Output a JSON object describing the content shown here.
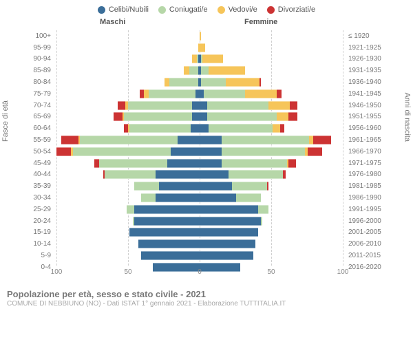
{
  "chart": {
    "type": "population_pyramid",
    "background_color": "#ffffff",
    "grid_color": "#cfcfcf",
    "text_color": "#777777",
    "font_family": "Arial",
    "label_fontsize": 10,
    "header_fontsize": 11,
    "header_male": "Maschi",
    "header_female": "Femmine",
    "y_title_left": "Fasce di età",
    "y_title_right": "Anni di nascita",
    "legend": {
      "items": [
        {
          "label": "Celibi/Nubili",
          "color": "#3b6e99"
        },
        {
          "label": "Coniugati/e",
          "color": "#b6d7a8"
        },
        {
          "label": "Vedovi/e",
          "color": "#f6c55a"
        },
        {
          "label": "Divorziati/e",
          "color": "#cc3333"
        }
      ],
      "fontsize": 11
    },
    "xaxis": {
      "max": 100,
      "ticks": [
        100,
        50,
        0,
        50,
        100
      ],
      "tick_fontsize": 10
    },
    "rows": [
      {
        "age": "100+",
        "year": "≤ 1920",
        "m": [
          0,
          0,
          0,
          0
        ],
        "f": [
          0,
          0,
          1,
          0
        ]
      },
      {
        "age": "95-99",
        "year": "1921-1925",
        "m": [
          0,
          0,
          1,
          0
        ],
        "f": [
          0,
          0,
          4,
          0
        ]
      },
      {
        "age": "90-94",
        "year": "1926-1930",
        "m": [
          1,
          1,
          3,
          0
        ],
        "f": [
          1,
          1,
          14,
          0
        ]
      },
      {
        "age": "85-89",
        "year": "1931-1935",
        "m": [
          1,
          6,
          4,
          0
        ],
        "f": [
          1,
          5,
          25,
          0
        ]
      },
      {
        "age": "80-84",
        "year": "1936-1940",
        "m": [
          1,
          20,
          3,
          0
        ],
        "f": [
          1,
          17,
          23,
          1
        ]
      },
      {
        "age": "75-79",
        "year": "1941-1945",
        "m": [
          3,
          32,
          3,
          3
        ],
        "f": [
          3,
          28,
          22,
          3
        ]
      },
      {
        "age": "70-74",
        "year": "1946-1950",
        "m": [
          5,
          44,
          2,
          5
        ],
        "f": [
          5,
          42,
          15,
          5
        ]
      },
      {
        "age": "65-69",
        "year": "1951-1955",
        "m": [
          5,
          47,
          1,
          6
        ],
        "f": [
          5,
          48,
          8,
          6
        ]
      },
      {
        "age": "60-64",
        "year": "1956-1960",
        "m": [
          6,
          42,
          1,
          3
        ],
        "f": [
          6,
          44,
          5,
          3
        ]
      },
      {
        "age": "55-59",
        "year": "1961-1965",
        "m": [
          15,
          67,
          1,
          12
        ],
        "f": [
          15,
          60,
          3,
          12
        ]
      },
      {
        "age": "50-54",
        "year": "1966-1970",
        "m": [
          20,
          67,
          1,
          10
        ],
        "f": [
          15,
          57,
          2,
          10
        ]
      },
      {
        "age": "45-49",
        "year": "1971-1975",
        "m": [
          22,
          47,
          0,
          3
        ],
        "f": [
          15,
          45,
          1,
          5
        ]
      },
      {
        "age": "40-44",
        "year": "1976-1980",
        "m": [
          30,
          35,
          0,
          1
        ],
        "f": [
          20,
          37,
          0,
          2
        ]
      },
      {
        "age": "35-39",
        "year": "1981-1985",
        "m": [
          28,
          17,
          0,
          0
        ],
        "f": [
          22,
          24,
          0,
          1
        ]
      },
      {
        "age": "30-34",
        "year": "1986-1990",
        "m": [
          30,
          10,
          0,
          0
        ],
        "f": [
          25,
          17,
          0,
          0
        ]
      },
      {
        "age": "25-29",
        "year": "1991-1995",
        "m": [
          45,
          5,
          0,
          0
        ],
        "f": [
          40,
          7,
          0,
          0
        ]
      },
      {
        "age": "20-24",
        "year": "1996-2000",
        "m": [
          45,
          1,
          0,
          0
        ],
        "f": [
          42,
          1,
          0,
          0
        ]
      },
      {
        "age": "15-19",
        "year": "2001-2005",
        "m": [
          48,
          0,
          0,
          0
        ],
        "f": [
          40,
          0,
          0,
          0
        ]
      },
      {
        "age": "10-14",
        "year": "2006-2010",
        "m": [
          42,
          0,
          0,
          0
        ],
        "f": [
          38,
          0,
          0,
          0
        ]
      },
      {
        "age": "5-9",
        "year": "2011-2015",
        "m": [
          40,
          0,
          0,
          0
        ],
        "f": [
          37,
          0,
          0,
          0
        ]
      },
      {
        "age": "0-4",
        "year": "2016-2020",
        "m": [
          32,
          0,
          0,
          0
        ],
        "f": [
          28,
          0,
          0,
          0
        ]
      }
    ]
  },
  "footer": {
    "title": "Popolazione per età, sesso e stato civile - 2021",
    "subtitle": "COMUNE DI NEBBIUNO (NO) - Dati ISTAT 1° gennaio 2021 - Elaborazione TUTTITALIA.IT",
    "title_fontsize": 13,
    "title_color": "#777777",
    "sub_fontsize": 10,
    "sub_color": "#a8a8a8"
  }
}
